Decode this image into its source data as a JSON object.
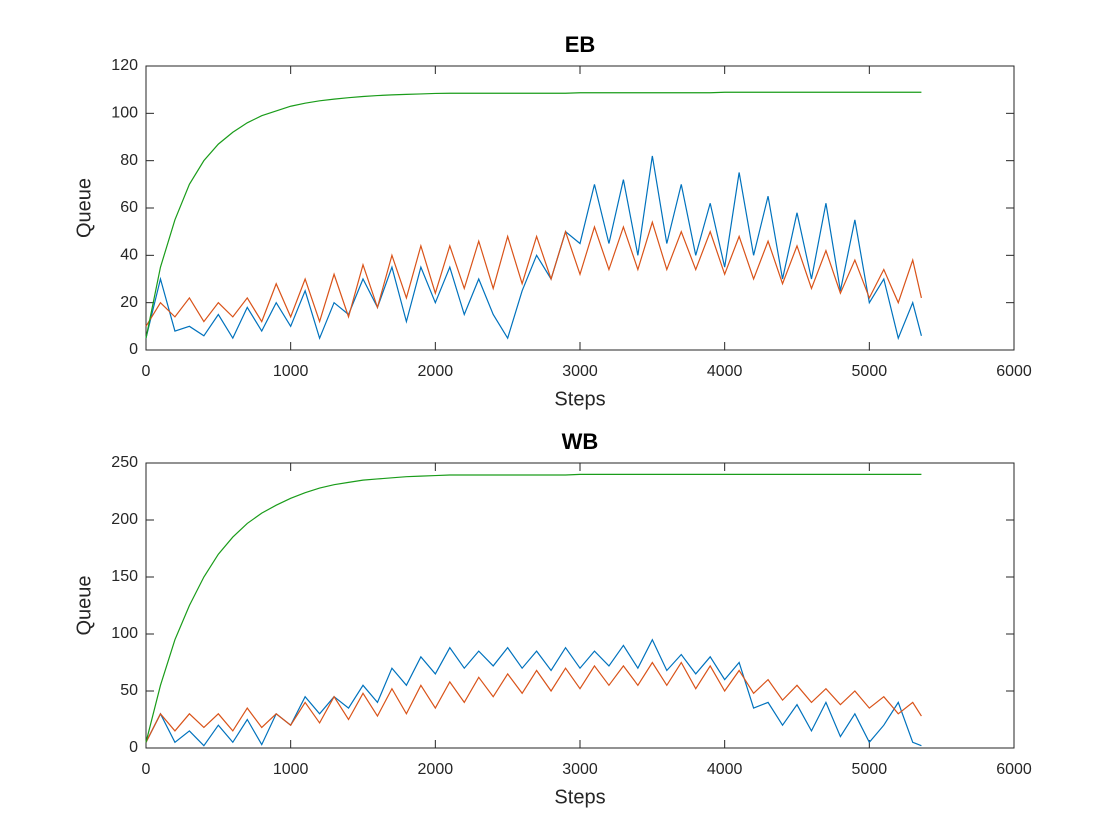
{
  "chart_data": [
    {
      "type": "line",
      "title": "EB",
      "xlabel": "Steps",
      "ylabel": "Queue",
      "xlim": [
        0,
        6000
      ],
      "xticks": [
        0,
        1000,
        2000,
        3000,
        4000,
        5000,
        6000
      ],
      "ylim": [
        0,
        120
      ],
      "yticks": [
        0,
        20,
        40,
        60,
        80,
        100,
        120
      ],
      "x": [
        0,
        100,
        200,
        300,
        400,
        500,
        600,
        700,
        800,
        900,
        1000,
        1100,
        1200,
        1300,
        1400,
        1500,
        1600,
        1700,
        1800,
        1900,
        2000,
        2100,
        2200,
        2300,
        2400,
        2500,
        2600,
        2700,
        2800,
        2900,
        3000,
        3100,
        3200,
        3300,
        3400,
        3500,
        3600,
        3700,
        3800,
        3900,
        4000,
        4100,
        4200,
        4300,
        4400,
        4500,
        4600,
        4700,
        4800,
        4900,
        5000,
        5100,
        5200,
        5300,
        5360
      ],
      "series": [
        {
          "color": "#0072bd",
          "values": [
            5,
            30,
            8,
            10,
            6,
            15,
            5,
            18,
            8,
            20,
            10,
            25,
            5,
            20,
            15,
            30,
            18,
            35,
            12,
            35,
            20,
            35,
            15,
            30,
            15,
            5,
            25,
            40,
            30,
            50,
            45,
            70,
            45,
            72,
            40,
            82,
            45,
            70,
            40,
            62,
            35,
            75,
            40,
            65,
            30,
            58,
            30,
            62,
            25,
            55,
            20,
            30,
            5,
            20,
            6
          ]
        },
        {
          "color": "#d95319",
          "values": [
            10,
            20,
            14,
            22,
            12,
            20,
            14,
            22,
            12,
            28,
            14,
            30,
            12,
            32,
            14,
            36,
            18,
            40,
            22,
            44,
            24,
            44,
            26,
            46,
            26,
            48,
            28,
            48,
            30,
            50,
            32,
            52,
            34,
            52,
            34,
            54,
            34,
            50,
            34,
            50,
            32,
            48,
            30,
            46,
            28,
            44,
            26,
            42,
            24,
            38,
            22,
            34,
            20,
            38,
            22
          ]
        },
        {
          "color": "#1a9c1a",
          "values": [
            5,
            35,
            55,
            70,
            80,
            87,
            92,
            96,
            99,
            101,
            103,
            104.3,
            105.3,
            106,
            106.6,
            107.1,
            107.5,
            107.8,
            108,
            108.2,
            108.4,
            108.5,
            108.5,
            108.5,
            108.5,
            108.5,
            108.5,
            108.5,
            108.5,
            108.5,
            108.7,
            108.7,
            108.7,
            108.7,
            108.7,
            108.7,
            108.7,
            108.7,
            108.7,
            108.7,
            108.9,
            108.9,
            108.9,
            108.9,
            108.9,
            108.9,
            108.9,
            108.9,
            108.9,
            108.9,
            108.9,
            108.9,
            108.9,
            108.9,
            108.9
          ]
        }
      ]
    },
    {
      "type": "line",
      "title": "WB",
      "xlabel": "Steps",
      "ylabel": "Queue",
      "xlim": [
        0,
        6000
      ],
      "xticks": [
        0,
        1000,
        2000,
        3000,
        4000,
        5000,
        6000
      ],
      "ylim": [
        0,
        250
      ],
      "yticks": [
        0,
        50,
        100,
        150,
        200,
        250
      ],
      "x": [
        0,
        100,
        200,
        300,
        400,
        500,
        600,
        700,
        800,
        900,
        1000,
        1100,
        1200,
        1300,
        1400,
        1500,
        1600,
        1700,
        1800,
        1900,
        2000,
        2100,
        2200,
        2300,
        2400,
        2500,
        2600,
        2700,
        2800,
        2900,
        3000,
        3100,
        3200,
        3300,
        3400,
        3500,
        3600,
        3700,
        3800,
        3900,
        4000,
        4100,
        4200,
        4300,
        4400,
        4500,
        4600,
        4700,
        4800,
        4900,
        5000,
        5100,
        5200,
        5300,
        5360
      ],
      "series": [
        {
          "color": "#0072bd",
          "values": [
            5,
            30,
            5,
            15,
            2,
            20,
            5,
            25,
            3,
            30,
            20,
            45,
            30,
            45,
            35,
            55,
            40,
            70,
            55,
            80,
            65,
            88,
            70,
            85,
            72,
            88,
            70,
            85,
            68,
            88,
            70,
            85,
            72,
            90,
            70,
            95,
            68,
            82,
            65,
            80,
            60,
            75,
            35,
            40,
            20,
            38,
            15,
            40,
            10,
            30,
            5,
            20,
            40,
            5,
            2
          ]
        },
        {
          "color": "#d95319",
          "values": [
            5,
            30,
            15,
            30,
            18,
            30,
            15,
            35,
            18,
            30,
            20,
            40,
            22,
            45,
            25,
            48,
            28,
            52,
            30,
            55,
            35,
            58,
            40,
            62,
            45,
            65,
            48,
            68,
            50,
            70,
            52,
            72,
            55,
            72,
            55,
            75,
            55,
            75,
            52,
            72,
            50,
            68,
            48,
            60,
            42,
            55,
            40,
            52,
            38,
            50,
            35,
            45,
            30,
            40,
            28
          ]
        },
        {
          "color": "#1a9c1a",
          "values": [
            5,
            55,
            95,
            125,
            150,
            170,
            185,
            197,
            206,
            213,
            219,
            224,
            228,
            231,
            233,
            235,
            236,
            237,
            238,
            238.5,
            239,
            239.5,
            239.5,
            239.5,
            239.5,
            239.5,
            239.5,
            239.5,
            239.5,
            239.5,
            240,
            240,
            240,
            240,
            240,
            240,
            240,
            240,
            240,
            240,
            240,
            240,
            240,
            240,
            240,
            240,
            240,
            240,
            240,
            240,
            240,
            240,
            240,
            240,
            240
          ]
        }
      ]
    }
  ]
}
